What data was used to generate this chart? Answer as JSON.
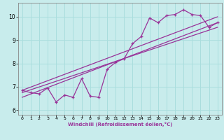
{
  "title": "",
  "xlabel": "Windchill (Refroidissement éolien,°C)",
  "ylabel": "",
  "bg_color": "#c8ecec",
  "line_color": "#993399",
  "grid_color": "#aadddd",
  "xlim": [
    -0.5,
    23.5
  ],
  "ylim": [
    5.8,
    10.6
  ],
  "xticks": [
    0,
    1,
    2,
    3,
    4,
    5,
    6,
    7,
    8,
    9,
    10,
    11,
    12,
    13,
    14,
    15,
    16,
    17,
    18,
    19,
    20,
    21,
    22,
    23
  ],
  "yticks": [
    6,
    7,
    8,
    9,
    10
  ],
  "scatter_x": [
    0,
    1,
    2,
    3,
    4,
    5,
    6,
    7,
    8,
    9,
    10,
    11,
    12,
    13,
    14,
    15,
    16,
    17,
    18,
    19,
    20,
    21,
    22,
    23
  ],
  "scatter_y": [
    6.85,
    6.75,
    6.7,
    6.95,
    6.35,
    6.65,
    6.55,
    7.35,
    6.6,
    6.55,
    7.75,
    8.05,
    8.2,
    8.85,
    9.15,
    9.95,
    9.75,
    10.05,
    10.1,
    10.3,
    10.1,
    10.05,
    9.55,
    9.75
  ],
  "line1_x": [
    0,
    23
  ],
  "line1_y": [
    6.85,
    10.0
  ],
  "line2_x": [
    0,
    23
  ],
  "line2_y": [
    6.55,
    9.75
  ],
  "line3_x": [
    0,
    23
  ],
  "line3_y": [
    6.75,
    9.55
  ]
}
